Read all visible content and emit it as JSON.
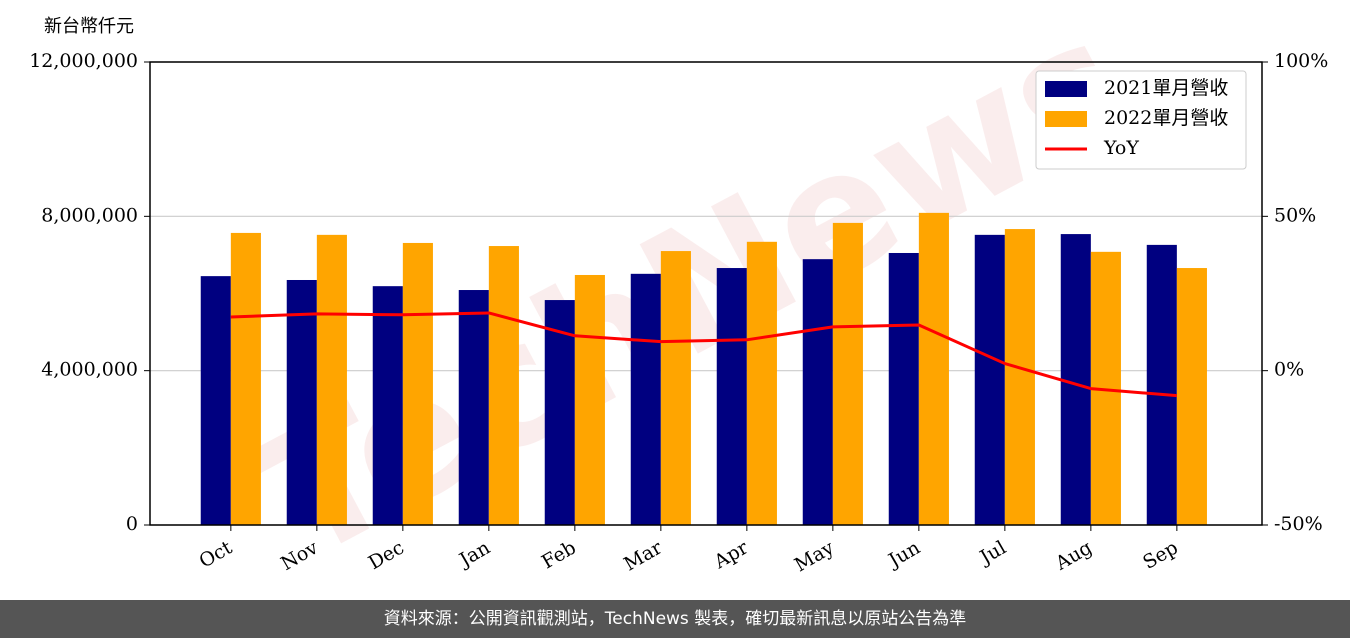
{
  "chart_data": {
    "type": "bar",
    "y_label": "新台幣仟元",
    "categories": [
      "Oct",
      "Nov",
      "Dec",
      "Jan",
      "Feb",
      "Mar",
      "Apr",
      "May",
      "Jun",
      "Jul",
      "Aug",
      "Sep"
    ],
    "series": [
      {
        "name": "2021單月營收",
        "color": "#000080",
        "values": [
          6450000,
          6350000,
          6190000,
          6090000,
          5830000,
          6510000,
          6660000,
          6890000,
          7050000,
          7520000,
          7540000,
          7260000
        ]
      },
      {
        "name": "2022單月營收",
        "color": "#ffa500",
        "values": [
          7570000,
          7520000,
          7310000,
          7230000,
          6480000,
          7100000,
          7340000,
          7830000,
          8090000,
          7670000,
          7080000,
          6660000
        ]
      },
      {
        "name": "YoY",
        "type": "line",
        "axis": "y2",
        "color": "#ff0000",
        "values": [
          17.4,
          18.4,
          18.1,
          18.7,
          11.3,
          9.4,
          10.0,
          14.2,
          14.8,
          2.3,
          -5.8,
          -8.1
        ]
      }
    ],
    "ylim": [
      0,
      12000000
    ],
    "yticks": [
      0,
      {
        "value": 4000000,
        "label": "4,000,000"
      },
      {
        "value": 8000000,
        "label": "8,000,000"
      },
      {
        "value": 12000000,
        "label": "12,000,000"
      }
    ],
    "y2lim": [
      -50,
      100
    ],
    "y2ticks": [
      {
        "value": -50,
        "label": "-50%"
      },
      {
        "value": 0,
        "label": "0%"
      },
      {
        "value": 50,
        "label": "50%"
      },
      {
        "value": 100,
        "label": "100%"
      }
    ],
    "grid": true,
    "legend": "upper right",
    "watermark": "TechNews",
    "footer": "資料來源：公開資訊觀測站，TechNews 製表，確切最新訊息以原站公告為準"
  }
}
